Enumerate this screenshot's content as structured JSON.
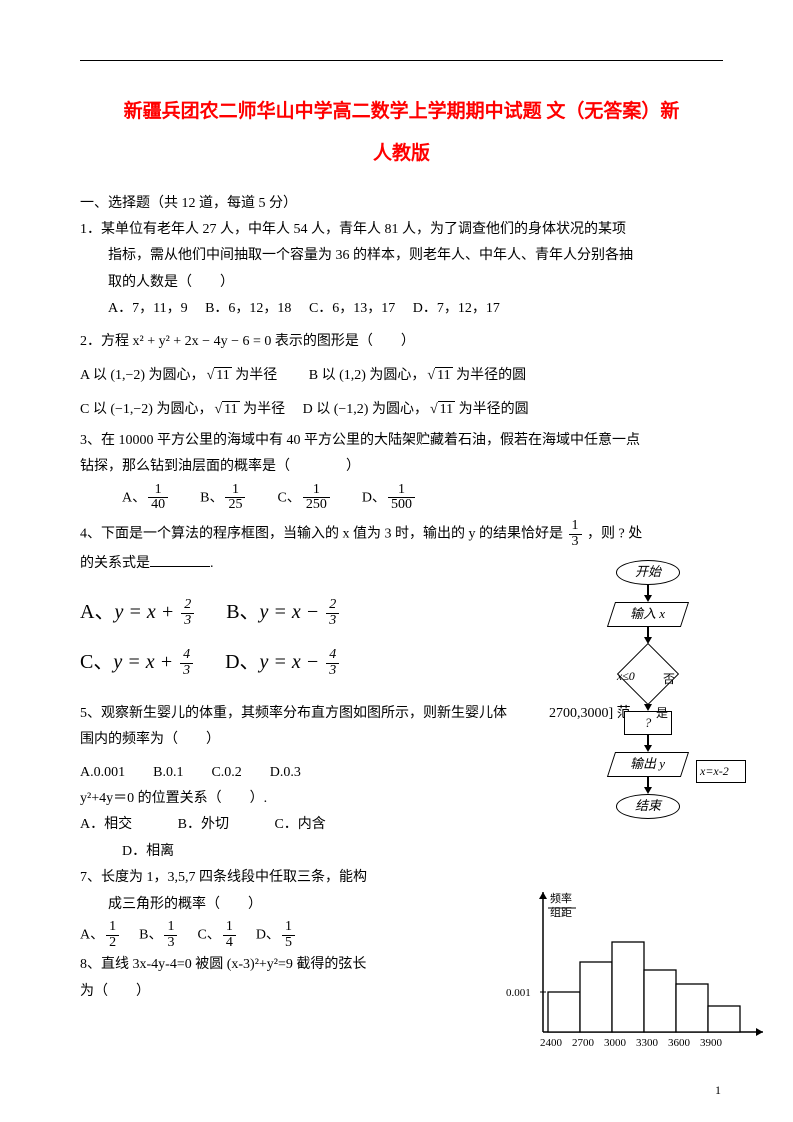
{
  "title_line1": "新疆兵团农二师华山中学高二数学上学期期中试题 文（无答案）新",
  "title_line2": "人教版",
  "section1": "一、选择题（共 12 道，每道 5 分）",
  "q1": {
    "stem1": "1．某单位有老年人 27 人，中年人 54 人，青年人 81 人，为了调查他们的身体状况的某项",
    "stem2": "指标，需从他们中间抽取一个容量为 36 的样本，则老年人、中年人、青年人分别各抽",
    "stem3": "取的人数是（　　）",
    "optA": "A．7，11，9",
    "optB": "B．6，12，18",
    "optC": "C．6，13，17",
    "optD": "D．7，12，17"
  },
  "q2": {
    "stem": "2．方程 x² + y² + 2x − 4y − 6 = 0 表示的图形是（　　）",
    "optA_pre": "A 以 (1,−2) 为圆心，",
    "optA_rad": "11",
    "optA_post": " 为半径",
    "optB_pre": "B 以 (1,2) 为圆心，",
    "optB_rad": "11",
    "optB_post": " 为半径的圆",
    "optC_pre": "C 以 (−1,−2) 为圆心，",
    "optC_rad": "11",
    "optC_post": " 为半径",
    "optD_pre": "D 以 (−1,2) 为圆心，",
    "optD_rad": "11",
    "optD_post": " 为半径的圆"
  },
  "q3": {
    "stem1": "3、在 10000 平方公里的海域中有 40 平方公里的大陆架贮藏着石油，假若在海域中任意一点",
    "stem2": "钻探，那么钻到油层面的概率是（　　　　）",
    "opts": {
      "A": "A、",
      "B": "B、",
      "C": "C、",
      "D": "D、"
    },
    "fracs": {
      "A": {
        "n": "1",
        "d": "40"
      },
      "B": {
        "n": "1",
        "d": "25"
      },
      "C": {
        "n": "1",
        "d": "250"
      },
      "D": {
        "n": "1",
        "d": "500"
      }
    }
  },
  "q4": {
    "stem1": "4、下面是一个算法的程序框图，当输入的 x 值为 3 时，输出的 y 的结果恰好是 ",
    "stem1_frac": {
      "n": "1",
      "d": "3"
    },
    "stem1_post": " ，则 ? 处",
    "stem2": "的关系式是",
    "stem2_post": ".",
    "optA": "A、",
    "optB": "B、",
    "optC": "C、",
    "optD": "D、",
    "fA": {
      "pre": "y = x + ",
      "n": "2",
      "d": "3"
    },
    "fB": {
      "pre": "y = x − ",
      "n": "2",
      "d": "3"
    },
    "fC": {
      "pre": "y = x + ",
      "n": "4",
      "d": "3"
    },
    "fD": {
      "pre": "y = x − ",
      "n": "4",
      "d": "3"
    }
  },
  "flowchart": {
    "start": "开始",
    "input": "输入 x",
    "cond": "x≤0",
    "yes": "是",
    "no": "否",
    "side": "x=x-2",
    "q": "?",
    "out": "输出 y",
    "end": "结束"
  },
  "q5": {
    "stem1": "5、观察新生婴儿的体重，其频率分布直方图如图所示，则新生婴儿体",
    "stem1_ins": "2700,3000] 范",
    "stem2": "围内的频率为（　　）",
    "opts": "A.0.001　　B.0.1　　C.0.2　　D.0.3"
  },
  "q6": {
    "stem": "y²+4y＝0 的位置关系（　　）.",
    "optA": "A．相交",
    "optB": "B．外切",
    "optC": "C．内含",
    "optD": "D．相离"
  },
  "q7": {
    "stem1": "7、长度为 1，3,5,7 四条线段中任取三条，能构",
    "stem2": "成三角形的概率（　　）",
    "opts": {
      "A": "A、",
      "B": "B、",
      "C": "C、",
      "D": "D、"
    },
    "fracs": {
      "A": {
        "n": "1",
        "d": "2"
      },
      "B": {
        "n": "1",
        "d": "3"
      },
      "C": {
        "n": "1",
        "d": "4"
      },
      "D": {
        "n": "1",
        "d": "5"
      }
    }
  },
  "q8": {
    "stem1": "8、直线 3x-4y-4=0 被圆 (x-3)²+y²=9 截得的弦长",
    "stem2": "为（　　）"
  },
  "hist": {
    "ylabel1": "频率",
    "ylabel2": "组距",
    "ytick": "0.001",
    "xticks": [
      "2400",
      "2700",
      "3000",
      "3300",
      "3600",
      "3900"
    ],
    "bars": [
      40,
      70,
      90,
      62,
      48,
      26
    ],
    "axis_color": "#000000",
    "bar_stroke": "#000000",
    "bar_fill": "#ffffff"
  },
  "pagenum": "1"
}
